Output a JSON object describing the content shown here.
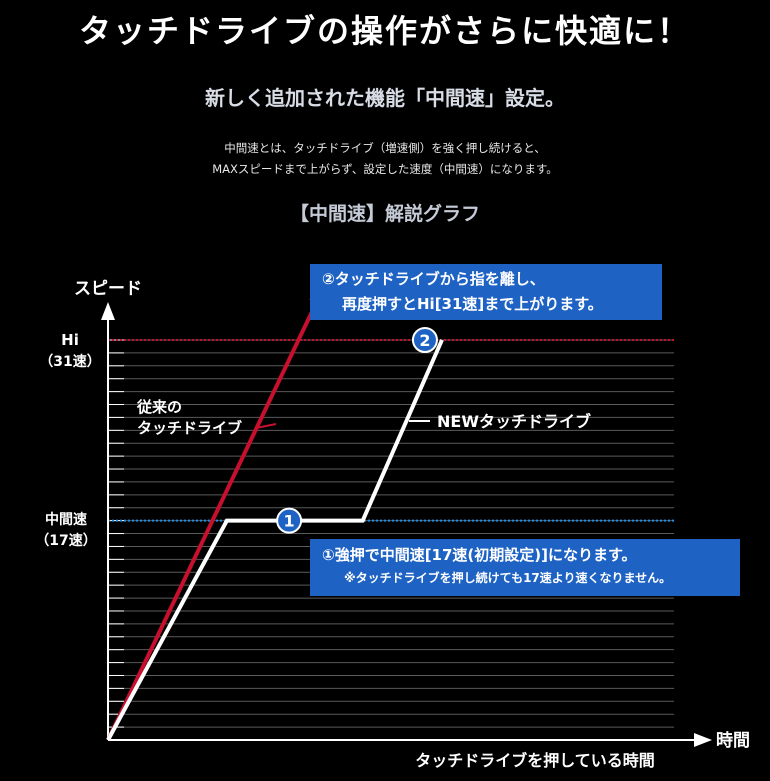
{
  "headline": "タッチドライブの操作がさらに快適に！",
  "subheadline": "新しく追加された機能「中間速」設定。",
  "description": [
    "中間速とは、タッチドライブ（増速側）を強く押し続けると、",
    "MAXスピードまで上がらず、設定した速度（中間速）になります。"
  ],
  "graph_title": "【中間速】解説グラフ",
  "chart_data": {
    "type": "line",
    "xlabel": "時間",
    "xlabel_long": "タッチドライブを押している時間",
    "ylabel": "スピード",
    "y_levels": [
      {
        "label": "Hi",
        "sub": "（31速）",
        "value": 31,
        "color": "#c8102e"
      },
      {
        "label": "中間速",
        "sub": "（17速）",
        "value": 17,
        "color": "#1e8fe6"
      }
    ],
    "ylim": [
      0,
      35
    ],
    "xlim": [
      0,
      100
    ],
    "series": [
      {
        "name": "従来のタッチドライブ",
        "color": "#c8102e",
        "x": [
          0,
          38
        ],
        "y": [
          0,
          35
        ]
      },
      {
        "name": "NEWタッチドライブ",
        "color": "#ffffff",
        "x": [
          0,
          21,
          45,
          59
        ],
        "y": [
          0,
          17,
          17,
          31
        ]
      }
    ],
    "markers": [
      {
        "label": "1",
        "x": 32,
        "y": 17
      },
      {
        "label": "2",
        "x": 56,
        "y": 31
      }
    ]
  },
  "legend": {
    "old_line1": "従来の",
    "old_line2": "タッチドライブ",
    "new": "NEWタッチドライブ"
  },
  "callouts": {
    "two_line1": "②タッチドライブから指を離し、",
    "two_line2": "再度押すとHi[31速]まで上がります。",
    "one_line1": "①強押で中間速[17速(初期設定)]になります。",
    "one_line2": "※タッチドライブを押し続けても17速より速くなりません。"
  },
  "colors": {
    "background": "#000000",
    "callout": "#1e63c4",
    "marker": "#1e63c4"
  }
}
